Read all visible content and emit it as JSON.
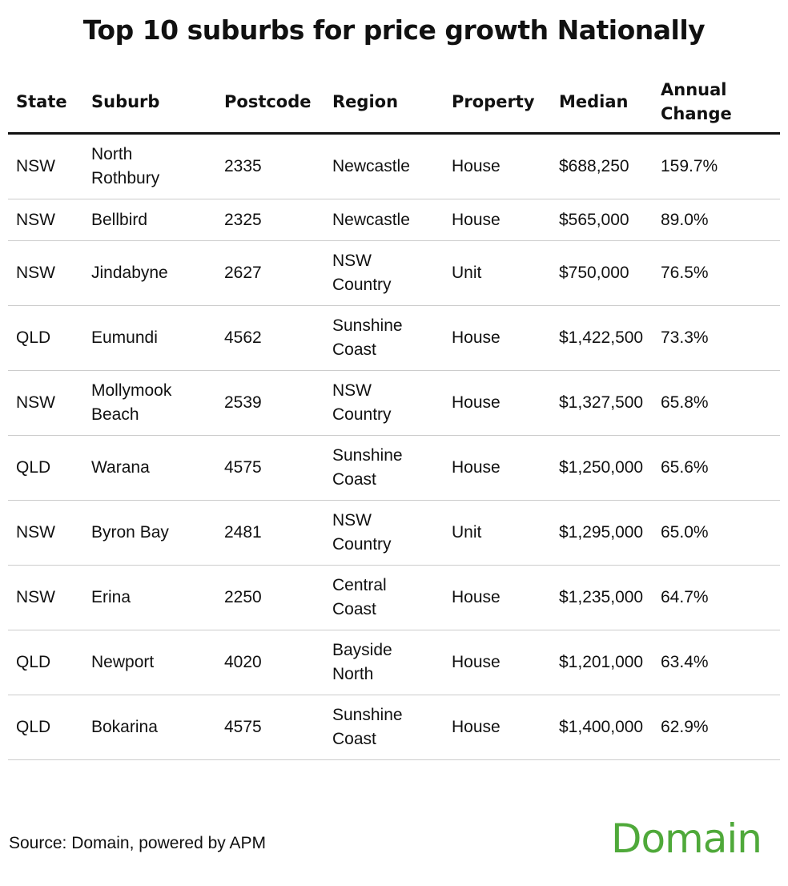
{
  "chart_data": {
    "type": "table",
    "title": "Top 10 suburbs for price growth Nationally",
    "columns": [
      "State",
      "Suburb",
      "Postcode",
      "Region",
      "Property",
      "Median",
      "Annual Change"
    ],
    "rows": [
      [
        "NSW",
        "North Rothbury",
        "2335",
        "Newcastle",
        "House",
        "$688,250",
        "159.7%"
      ],
      [
        "NSW",
        "Bellbird",
        "2325",
        "Newcastle",
        "House",
        "$565,000",
        "89.0%"
      ],
      [
        "NSW",
        "Jindabyne",
        "2627",
        "NSW Country",
        "Unit",
        "$750,000",
        "76.5%"
      ],
      [
        "QLD",
        "Eumundi",
        "4562",
        "Sunshine Coast",
        "House",
        "$1,422,500",
        "73.3%"
      ],
      [
        "NSW",
        "Mollymook Beach",
        "2539",
        "NSW Country",
        "House",
        "$1,327,500",
        "65.8%"
      ],
      [
        "QLD",
        "Warana",
        "4575",
        "Sunshine Coast",
        "House",
        "$1,250,000",
        "65.6%"
      ],
      [
        "NSW",
        "Byron Bay",
        "2481",
        "NSW Country",
        "Unit",
        "$1,295,000",
        "65.0%"
      ],
      [
        "NSW",
        "Erina",
        "2250",
        "Central Coast",
        "House",
        "$1,235,000",
        "64.7%"
      ],
      [
        "QLD",
        "Newport",
        "4020",
        "Bayside North",
        "House",
        "$1,201,000",
        "63.4%"
      ],
      [
        "QLD",
        "Bokarina",
        "4575",
        "Sunshine Coast",
        "House",
        "$1,400,000",
        "62.9%"
      ]
    ]
  },
  "footer": {
    "source": "Source: Domain, powered by APM",
    "logo": "Domain"
  },
  "colors": {
    "brand": "#4fa93a",
    "text": "#111111",
    "rule": "#cccccc"
  }
}
